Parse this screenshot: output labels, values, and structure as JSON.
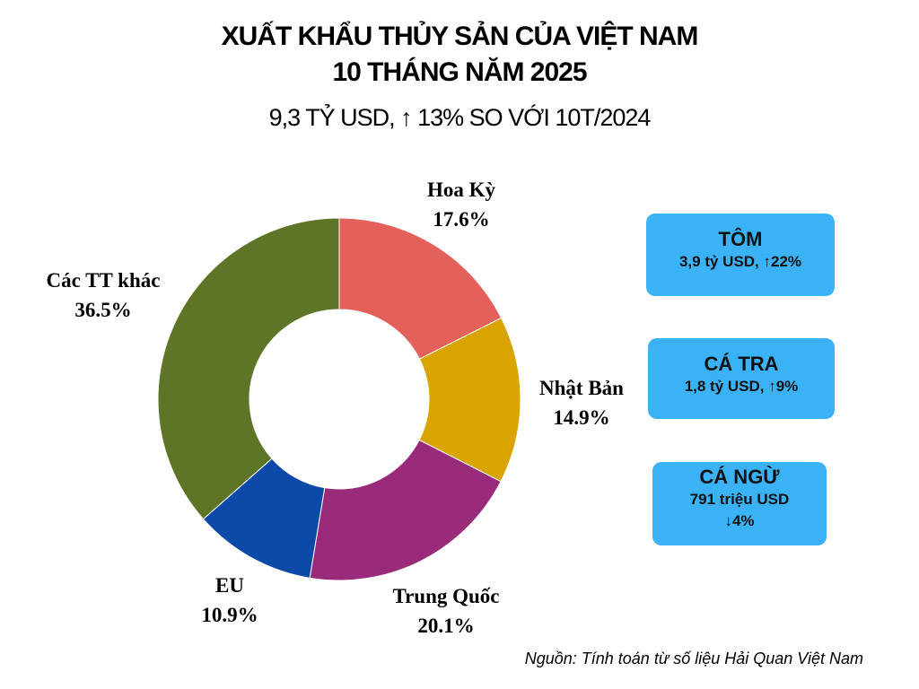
{
  "header": {
    "title_line1": "XUẤT KHẨU THỦY SẢN CỦA VIỆT NAM",
    "title_line2": "10 THÁNG NĂM 2025",
    "subtitle": "9,3 TỶ USD, ↑ 13% SO VỚI 10T/2024"
  },
  "chart_data": {
    "type": "pie",
    "donut": true,
    "unit": "%",
    "slices": [
      {
        "label": "Hoa Kỳ",
        "value": 17.6,
        "value_text": "17.6%",
        "color": "#e4605a"
      },
      {
        "label": "Nhật Bản",
        "value": 14.9,
        "value_text": "14.9%",
        "color": "#d9a300"
      },
      {
        "label": "Trung Quốc",
        "value": 20.1,
        "value_text": "20.1%",
        "color": "#992b7a"
      },
      {
        "label": "EU",
        "value": 10.9,
        "value_text": "10.9%",
        "color": "#0b4aa8"
      },
      {
        "label": "Các TT khác",
        "value": 36.5,
        "value_text": "36.5%",
        "color": "#5e7527"
      }
    ]
  },
  "cards": [
    {
      "name": "TÔM",
      "lines": [
        "3,9 tỷ USD, ↑22%"
      ]
    },
    {
      "name": "CÁ TRA",
      "lines": [
        "1,8 tỷ USD, ↑9%"
      ]
    },
    {
      "name": "CÁ NGỪ",
      "lines": [
        "791 triệu USD",
        "↓4%"
      ]
    }
  ],
  "footer": {
    "source": "Nguồn: Tính toán từ số liệu Hải Quan Việt Nam"
  },
  "colors": {
    "card_background": "#3bb2f5"
  }
}
